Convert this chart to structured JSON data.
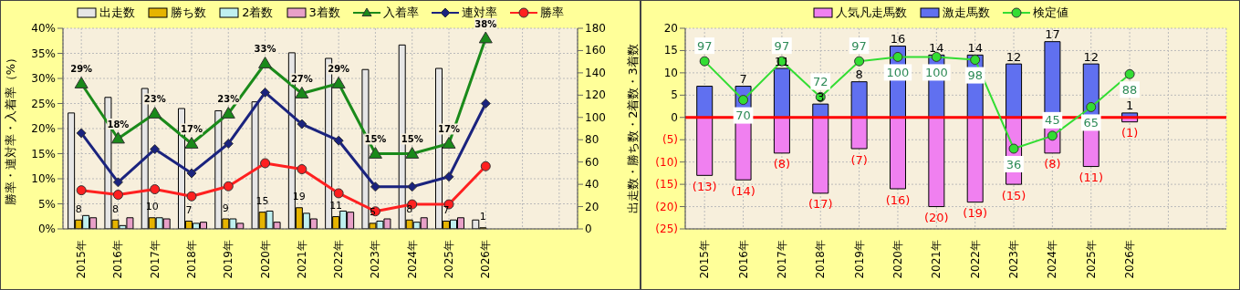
{
  "chart_data": [
    {
      "type": "bar",
      "ylabel": "勝率・連対率・入着率（%）",
      "y2label": "出走数・勝ち数・2着数・3着数",
      "categories": [
        "2015年",
        "2016年",
        "2017年",
        "2018年",
        "2019年",
        "2020年",
        "2021年",
        "2022年",
        "2023年",
        "2024年",
        "2025年",
        "2026年",
        null,
        null
      ],
      "ylim": [
        0,
        40
      ],
      "yticks": [
        {
          "value": 0,
          "label": "0%"
        },
        {
          "value": 5,
          "label": "5%"
        },
        {
          "value": 10,
          "label": "10%"
        },
        {
          "value": 15,
          "label": "15%"
        },
        {
          "value": 20,
          "label": "20%"
        },
        {
          "value": 25,
          "label": "25%"
        },
        {
          "value": 30,
          "label": "30%"
        },
        {
          "value": 35,
          "label": "35%"
        },
        {
          "value": 40,
          "label": "40%"
        }
      ],
      "y2lim": [
        0,
        180
      ],
      "y2ticks": [
        0,
        20,
        40,
        60,
        80,
        100,
        120,
        140,
        160,
        180
      ],
      "grid": true,
      "legend": "top",
      "series": [
        {
          "name": "出走数",
          "color": "#e6e6e6",
          "axis": "y2",
          "values": [
            104,
            118,
            126,
            108,
            106,
            114,
            158,
            153,
            143,
            165,
            144,
            8,
            null,
            null
          ]
        },
        {
          "name": "勝ち数",
          "color": "#e6b400",
          "axis": "y2",
          "values": [
            8,
            8,
            10,
            7,
            9,
            15,
            19,
            11,
            5,
            8,
            7,
            1,
            null,
            null
          ],
          "value_labels": [
            "8",
            "8",
            "10",
            "7",
            "9",
            "15",
            "19",
            "11",
            "5",
            "8",
            "7",
            "1",
            null,
            null
          ]
        },
        {
          "name": "2着数",
          "color": "#bff0f0",
          "axis": "y2",
          "values": [
            12,
            3,
            10,
            5,
            9,
            16,
            14,
            16,
            7,
            6,
            8,
            0,
            null,
            null
          ]
        },
        {
          "name": "3着数",
          "color": "#e8a0c8",
          "axis": "y2",
          "values": [
            10,
            10,
            9,
            6,
            5,
            6,
            9,
            15,
            9,
            10,
            10,
            0,
            null,
            null
          ]
        },
        {
          "name": "入着率",
          "type": "line",
          "color": "#1a8a1a",
          "marker": "triangle",
          "axis": "y",
          "values": [
            29,
            18,
            23,
            17,
            23,
            33,
            27,
            29,
            15,
            15,
            17,
            38,
            null,
            null
          ],
          "value_labels": [
            "29%",
            "18%",
            "23%",
            "17%",
            "23%",
            "33%",
            "27%",
            "29%",
            "15%",
            "15%",
            "17%",
            "38%",
            null,
            null
          ]
        },
        {
          "name": "連対率",
          "type": "line",
          "color": "#1a237e",
          "marker": "diamond",
          "axis": "y",
          "values": [
            19.1,
            9.3,
            15.9,
            11.1,
            17.0,
            27.2,
            20.9,
            17.6,
            8.4,
            8.4,
            10.4,
            25.0,
            null,
            null
          ]
        },
        {
          "name": "勝率",
          "type": "line",
          "color": "#ff2020",
          "marker": "circle",
          "axis": "y",
          "values": [
            7.7,
            6.8,
            7.9,
            6.5,
            8.5,
            13.1,
            11.9,
            7.1,
            3.5,
            4.9,
            4.9,
            12.5,
            null,
            null
          ]
        }
      ]
    },
    {
      "type": "bar",
      "stacked": true,
      "categories": [
        "2015年",
        "2016年",
        "2017年",
        "2018年",
        "2019年",
        "2020年",
        "2021年",
        "2022年",
        "2023年",
        "2024年",
        "2025年",
        "2026年",
        null,
        null
      ],
      "ylim": [
        -25,
        20
      ],
      "yticks": [
        {
          "value": -25,
          "label": "(25)"
        },
        {
          "value": -20,
          "label": "(20)"
        },
        {
          "value": -15,
          "label": "(15)"
        },
        {
          "value": -10,
          "label": "(10)"
        },
        {
          "value": -5,
          "label": "(5)"
        },
        0,
        5,
        10,
        15,
        20
      ],
      "y2lim": [
        -20,
        120
      ],
      "grid": true,
      "legend": "top",
      "ref_lines": [
        {
          "axis": "y",
          "value": 0,
          "color": "#ff0000"
        }
      ],
      "series": [
        {
          "name": "人気凡走馬数",
          "color": "#f080f0",
          "axis": "y",
          "values": [
            -13,
            -14,
            -8,
            -17,
            -7,
            -16,
            -20,
            -19,
            -15,
            -8,
            -11,
            -1,
            null,
            null
          ],
          "value_labels": [
            "(13)",
            "(14)",
            "(8)",
            "(17)",
            "(7)",
            "(16)",
            "(20)",
            "(19)",
            "(15)",
            "(8)",
            "(11)",
            "(1)",
            null,
            null
          ]
        },
        {
          "name": "激走馬数",
          "color": "#6070f0",
          "axis": "y",
          "values": [
            7,
            7,
            11,
            3,
            8,
            16,
            14,
            14,
            12,
            17,
            12,
            1,
            null,
            null
          ],
          "value_labels": [
            null,
            "7",
            "11",
            "3",
            "8",
            "16",
            "14",
            "14",
            "12",
            "17",
            "12",
            "1",
            null,
            null
          ]
        },
        {
          "name": "検定値",
          "type": "line",
          "color": "#33dd33",
          "marker": "circle",
          "axis": "y2",
          "values": [
            97,
            70,
            97,
            72,
            97,
            100,
            100,
            98,
            36,
            45,
            65,
            88,
            null,
            null
          ],
          "value_labels": [
            "97",
            "70",
            "97",
            "72",
            "97",
            "100",
            "100",
            "98",
            "36",
            "45",
            "65",
            "88",
            null,
            null
          ]
        }
      ]
    }
  ]
}
